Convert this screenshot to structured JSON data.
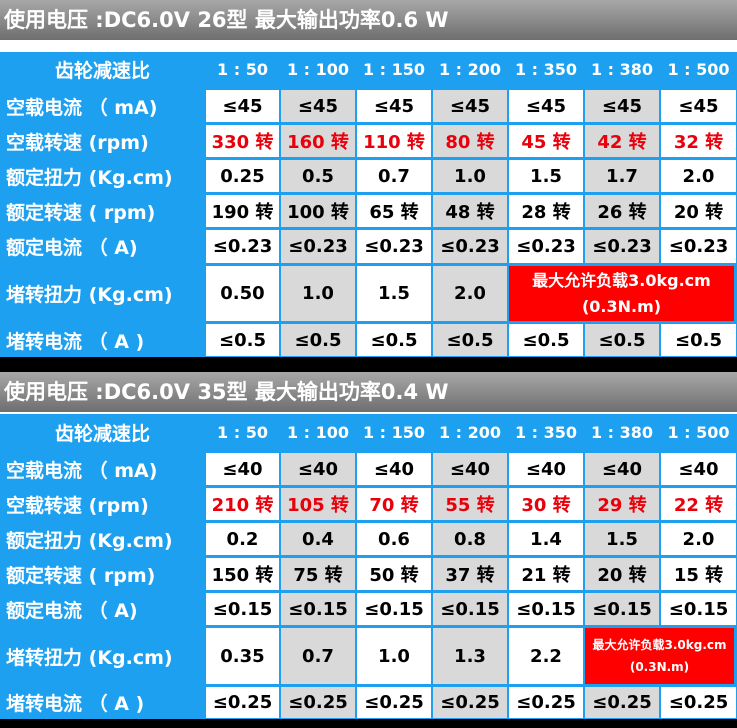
{
  "sections": [
    {
      "banner": "使用电压 :DC6.0V 26型 最大输出功率0.6 W",
      "header_label": "齿轮减速比",
      "ratios": [
        "1 : 50",
        "1 : 100",
        "1 : 150",
        "1 : 200",
        "1 : 350",
        "1 : 380",
        "1 : 500"
      ],
      "rows": [
        {
          "label": "空载电流 （ mA)",
          "values": [
            "≤45",
            "≤45",
            "≤45",
            "≤45",
            "≤45",
            "≤45",
            "≤45"
          ],
          "red": false
        },
        {
          "label": "空载转速 (rpm)",
          "values": [
            "330 转",
            "160 转",
            "110 转",
            "80 转",
            "45 转",
            "42 转",
            "32 转"
          ],
          "red": true
        },
        {
          "label": "额定扭力 (Kg.cm)",
          "values": [
            "0.25",
            "0.5",
            "0.7",
            "1.0",
            "1.5",
            "1.7",
            "2.0"
          ],
          "red": false
        },
        {
          "label": "额定转速 ( rpm)",
          "values": [
            "190 转",
            "100 转",
            "65 转",
            "48 转",
            "28 转",
            "26 转",
            "20 转"
          ],
          "red": false
        },
        {
          "label": "额定电流 （ A)",
          "values": [
            "≤0.23",
            "≤0.23",
            "≤0.23",
            "≤0.23",
            "≤0.23",
            "≤0.23",
            "≤0.23"
          ],
          "red": false
        },
        {
          "label": "堵转扭力 (Kg.cm)",
          "values": [
            "0.50",
            "1.0",
            "1.5",
            "2.0"
          ],
          "red": false
        },
        {
          "label": "堵转电流 （ A )",
          "values": [
            "≤0.5",
            "≤0.5",
            "≤0.5",
            "≤0.5",
            "≤0.5",
            "≤0.5",
            "≤0.5"
          ],
          "red": false
        }
      ],
      "warning": {
        "line1": "最大允许负载3.0kg.cm",
        "line2": "(0.3N.m)"
      }
    },
    {
      "banner": "使用电压 :DC6.0V 35型 最大输出功率0.4 W",
      "header_label": "齿轮减速比",
      "ratios": [
        "1 : 50",
        "1 : 100",
        "1 : 150",
        "1 : 200",
        "1 : 350",
        "1 : 380",
        "1 : 500"
      ],
      "rows": [
        {
          "label": "空载电流 （ mA)",
          "values": [
            "≤40",
            "≤40",
            "≤40",
            "≤40",
            "≤40",
            "≤40",
            "≤40"
          ],
          "red": false
        },
        {
          "label": "空载转速 (rpm)",
          "values": [
            "210 转",
            "105 转",
            "70 转",
            "55 转",
            "30 转",
            "29 转",
            "22 转"
          ],
          "red": true
        },
        {
          "label": "额定扭力 (Kg.cm)",
          "values": [
            "0.2",
            "0.4",
            "0.6",
            "0.8",
            "1.4",
            "1.5",
            "2.0"
          ],
          "red": false
        },
        {
          "label": "额定转速 ( rpm)",
          "values": [
            "150 转",
            "75 转",
            "50 转",
            "37 转",
            "21 转",
            "20 转",
            "15 转"
          ],
          "red": false
        },
        {
          "label": "额定电流 （ A)",
          "values": [
            "≤0.15",
            "≤0.15",
            "≤0.15",
            "≤0.15",
            "≤0.15",
            "≤0.15",
            "≤0.15"
          ],
          "red": false
        },
        {
          "label": "堵转扭力 (Kg.cm)",
          "values": [
            "0.35",
            "0.7",
            "1.0",
            "1.3",
            "2.2"
          ],
          "red": false
        },
        {
          "label": "堵转电流 （ A )",
          "values": [
            "≤0.25",
            "≤0.25",
            "≤0.25",
            "≤0.25",
            "≤0.25",
            "≤0.25",
            "≤0.25"
          ],
          "red": false
        }
      ],
      "warning": {
        "line1": "最大允许负载3.0kg.cm",
        "line2": "(0.3N.m)"
      }
    }
  ]
}
